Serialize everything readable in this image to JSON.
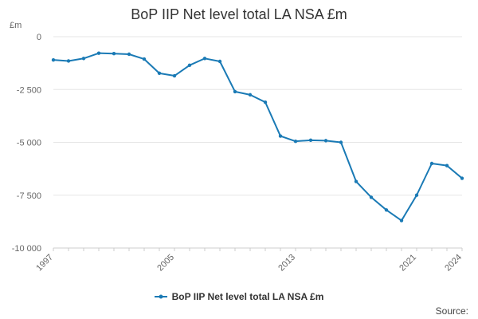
{
  "chart_data": {
    "type": "line",
    "title": "BoP IIP Net level total LA NSA £m",
    "y_unit_label": "£m",
    "ylim": [
      -10000,
      0
    ],
    "yticks": [
      0,
      -2500,
      -5000,
      -7500,
      -10000
    ],
    "ytick_labels": [
      "0",
      "-2 500",
      "-5 000",
      "-7 500",
      "-10 000"
    ],
    "xlim": [
      1997,
      2024
    ],
    "xticks": [
      1997,
      2005,
      2013,
      2021,
      2024
    ],
    "xtick_labels": [
      "1997",
      "2005",
      "2013",
      "2021",
      "2024"
    ],
    "grid": true,
    "legend_position": "bottom-center",
    "series": [
      {
        "name": "BoP IIP Net level total LA NSA £m",
        "color": "#1a7ab5",
        "x": [
          1997,
          1998,
          1999,
          2000,
          2001,
          2002,
          2003,
          2004,
          2005,
          2006,
          2007,
          2008,
          2009,
          2010,
          2011,
          2012,
          2013,
          2014,
          2015,
          2016,
          2017,
          2018,
          2019,
          2020,
          2021,
          2022,
          2023,
          2024
        ],
        "values": [
          -1100,
          -1150,
          -1030,
          -780,
          -800,
          -830,
          -1060,
          -1730,
          -1850,
          -1350,
          -1030,
          -1170,
          -2600,
          -2750,
          -3100,
          -4700,
          -4950,
          -4900,
          -4920,
          -5000,
          -6850,
          -7600,
          -8200,
          -8700,
          -7500,
          -6000,
          -6100,
          -6700
        ]
      }
    ]
  },
  "source_label": "Source:"
}
